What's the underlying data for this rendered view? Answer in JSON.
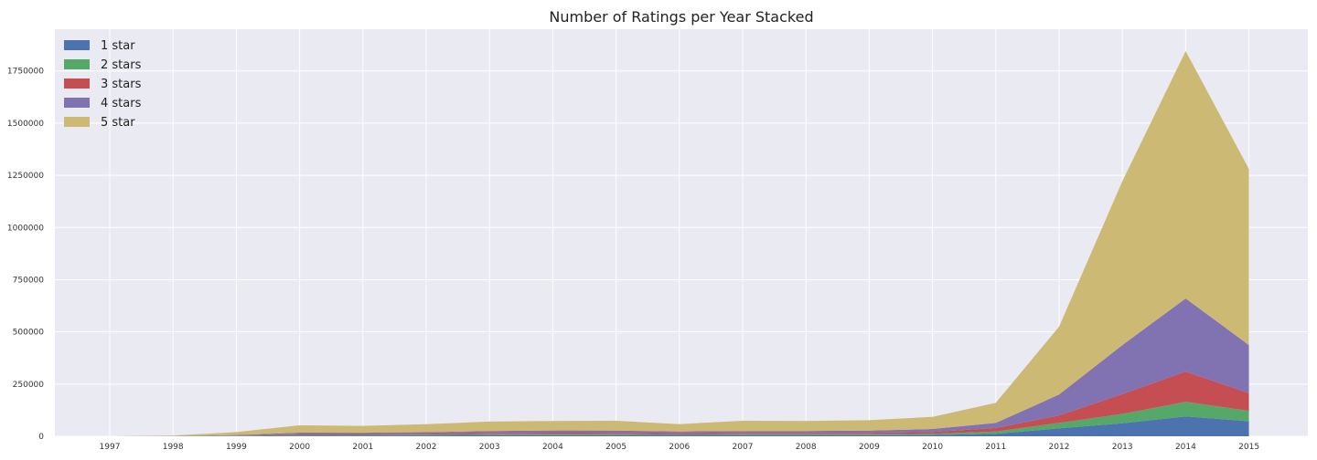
{
  "chart_data": {
    "type": "area",
    "stacked": true,
    "title": "Number of Ratings per Year Stacked",
    "xlabel": "",
    "ylabel": "",
    "categories": [
      "1997",
      "1998",
      "1999",
      "2000",
      "2001",
      "2002",
      "2003",
      "2004",
      "2005",
      "2006",
      "2007",
      "2008",
      "2009",
      "2010",
      "2011",
      "2012",
      "2013",
      "2014",
      "2015"
    ],
    "ylim": [
      0,
      1950000
    ],
    "yticks": [
      0,
      250000,
      500000,
      750000,
      1000000,
      1250000,
      1500000,
      1750000
    ],
    "ytick_labels": [
      "0",
      "250000",
      "500000",
      "750000",
      "1000000",
      "1250000",
      "1500000",
      "1750000"
    ],
    "grid": true,
    "legend_position": "top-left",
    "series": [
      {
        "name": "1 star",
        "color": "#4C72B0",
        "values": [
          0,
          200,
          1200,
          3500,
          3500,
          4000,
          5000,
          5500,
          5000,
          4500,
          5000,
          5000,
          5000,
          6000,
          12000,
          38000,
          62000,
          95000,
          72000
        ]
      },
      {
        "name": "2 stars",
        "color": "#55A868",
        "values": [
          0,
          200,
          1000,
          3000,
          3000,
          3500,
          4500,
          5000,
          5000,
          4000,
          4500,
          4500,
          5000,
          6000,
          11000,
          26000,
          45000,
          70000,
          50000
        ]
      },
      {
        "name": "3 stars",
        "color": "#C44E52",
        "values": [
          0,
          300,
          1500,
          4500,
          4500,
          5000,
          6500,
          7000,
          7000,
          6000,
          6500,
          6500,
          7000,
          9000,
          17000,
          36000,
          95000,
          145000,
          85000
        ]
      },
      {
        "name": "4 stars",
        "color": "#8172B2",
        "values": [
          0,
          500,
          2300,
          6500,
          6000,
          7000,
          9500,
          10500,
          10500,
          8500,
          9500,
          9500,
          10000,
          14000,
          24000,
          100000,
          235000,
          350000,
          230000
        ]
      },
      {
        "name": "5 star",
        "color": "#CCB974",
        "values": [
          0,
          1800,
          14000,
          35000,
          33000,
          38000,
          45000,
          45000,
          47000,
          35000,
          49000,
          48000,
          50000,
          58000,
          96000,
          325000,
          785000,
          1185000,
          843000
        ]
      }
    ]
  }
}
